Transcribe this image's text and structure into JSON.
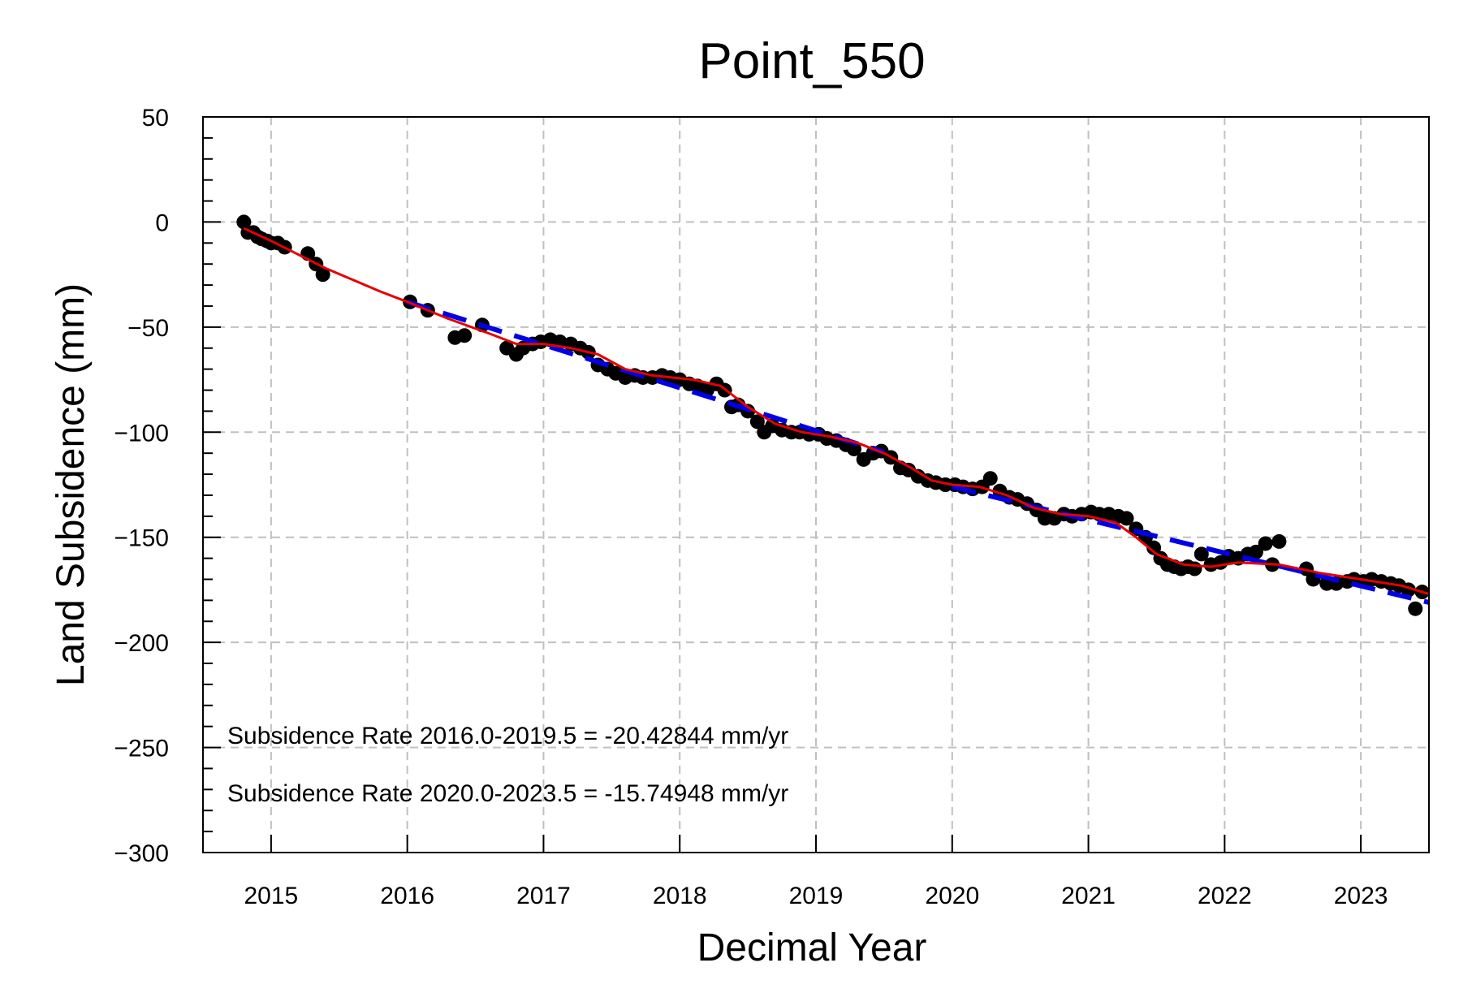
{
  "chart_data": {
    "type": "scatter",
    "title": "Point_550",
    "xlabel": "Decimal Year",
    "ylabel": "Land Subsidence (mm)",
    "xlim": [
      2014.5,
      2023.5
    ],
    "ylim": [
      -300,
      50
    ],
    "xticks": [
      2015,
      2016,
      2017,
      2018,
      2019,
      2020,
      2021,
      2022,
      2023
    ],
    "xtick_labels": [
      "2015",
      "2016",
      "2017",
      "2018",
      "2019",
      "2020",
      "2021",
      "2022",
      "2023"
    ],
    "yticks": [
      50,
      0,
      -50,
      -100,
      -150,
      -200,
      -250,
      -300
    ],
    "ytick_labels": [
      "50",
      "0",
      "−50",
      "−100",
      "−150",
      "−200",
      "−250",
      "−300"
    ],
    "grid": true,
    "annotations": [
      "Subsidence Rate 2016.0-2019.5 = -20.42844 mm/yr",
      "Subsidence Rate 2020.0-2023.5 = -15.74948 mm/yr"
    ],
    "colors": {
      "points": "#000000",
      "smooth": "#e60000",
      "trend": "#0000e6",
      "grid": "#c0c0c0"
    },
    "series": [
      {
        "kind": "points",
        "x": [
          2014.8,
          2014.83,
          2014.87,
          2014.9,
          2014.93,
          2014.97,
          2015.0,
          2015.05,
          2015.1,
          2015.27,
          2015.33,
          2015.38,
          2016.02,
          2016.15,
          2016.35,
          2016.42,
          2016.55,
          2016.73,
          2016.8,
          2016.85,
          2016.92,
          2016.98,
          2017.05,
          2017.12,
          2017.2,
          2017.27,
          2017.33,
          2017.4,
          2017.47,
          2017.53,
          2017.6,
          2017.67,
          2017.73,
          2017.8,
          2017.87,
          2017.93,
          2018.0,
          2018.07,
          2018.13,
          2018.2,
          2018.27,
          2018.33,
          2018.38,
          2018.43,
          2018.5,
          2018.57,
          2018.62,
          2018.68,
          2018.75,
          2018.82,
          2018.88,
          2018.95,
          2019.02,
          2019.08,
          2019.15,
          2019.22,
          2019.28,
          2019.35,
          2019.42,
          2019.48,
          2019.55,
          2019.62,
          2019.68,
          2019.75,
          2019.82,
          2019.88,
          2019.95,
          2020.02,
          2020.08,
          2020.15,
          2020.22,
          2020.28,
          2020.35,
          2020.42,
          2020.48,
          2020.55,
          2020.62,
          2020.68,
          2020.75,
          2020.82,
          2020.88,
          2020.95,
          2021.02,
          2021.08,
          2021.15,
          2021.22,
          2021.28,
          2021.35,
          2021.42,
          2021.48,
          2021.53,
          2021.58,
          2021.63,
          2021.68,
          2021.73,
          2021.78,
          2021.83,
          2021.9,
          2021.97,
          2022.03,
          2022.1,
          2022.17,
          2022.23,
          2022.3,
          2022.35,
          2022.4,
          2022.6,
          2022.65,
          2022.75,
          2022.82,
          2022.9,
          2022.95,
          2023.02,
          2023.08,
          2023.15,
          2023.22,
          2023.28,
          2023.35,
          2023.4,
          2023.45
        ],
        "y": [
          0,
          -5,
          -5,
          -7,
          -8,
          -9,
          -10,
          -10,
          -12,
          -15,
          -20,
          -25,
          -38,
          -42,
          -55,
          -54,
          -49,
          -60,
          -63,
          -60,
          -58,
          -57,
          -56,
          -57,
          -58,
          -60,
          -62,
          -68,
          -70,
          -72,
          -74,
          -73,
          -74,
          -74,
          -73,
          -74,
          -75,
          -77,
          -78,
          -80,
          -77,
          -80,
          -88,
          -87,
          -90,
          -95,
          -100,
          -97,
          -99,
          -100,
          -100,
          -101,
          -101,
          -103,
          -104,
          -106,
          -108,
          -113,
          -110,
          -109,
          -112,
          -117,
          -118,
          -121,
          -123,
          -124,
          -125,
          -125,
          -126,
          -127,
          -126,
          -122,
          -128,
          -131,
          -132,
          -134,
          -137,
          -141,
          -141,
          -139,
          -140,
          -139,
          -138,
          -139,
          -139,
          -140,
          -141,
          -146,
          -150,
          -155,
          -160,
          -163,
          -164,
          -165,
          -164,
          -165,
          -158,
          -163,
          -162,
          -159,
          -160,
          -158,
          -157,
          -153,
          -163,
          -152,
          -165,
          -170,
          -172,
          -172,
          -171,
          -170,
          -171,
          -170,
          -171,
          -172,
          -173,
          -175,
          -184,
          -176
        ]
      },
      {
        "kind": "smooth-line",
        "x": [
          2014.8,
          2015.0,
          2015.4,
          2015.8,
          2016.0,
          2016.3,
          2016.6,
          2016.8,
          2017.0,
          2017.2,
          2017.4,
          2017.6,
          2017.8,
          2018.1,
          2018.3,
          2018.5,
          2018.7,
          2018.9,
          2019.1,
          2019.3,
          2019.5,
          2019.7,
          2019.85,
          2020.0,
          2020.2,
          2020.4,
          2020.6,
          2020.8,
          2021.0,
          2021.2,
          2021.35,
          2021.5,
          2021.7,
          2021.9,
          2022.1,
          2022.4,
          2022.7,
          2023.0,
          2023.3,
          2023.5
        ],
        "y": [
          -3,
          -9,
          -22,
          -33,
          -38,
          -46,
          -53,
          -58,
          -58,
          -60,
          -63,
          -70,
          -73,
          -75,
          -78,
          -88,
          -96,
          -100,
          -102,
          -105,
          -110,
          -117,
          -123,
          -125,
          -126,
          -130,
          -136,
          -139,
          -140,
          -143,
          -150,
          -158,
          -163,
          -164,
          -162,
          -163,
          -167,
          -170,
          -173,
          -177
        ]
      },
      {
        "kind": "trend-line",
        "x": [
          2016.0,
          2019.5
        ],
        "y": [
          -38,
          -109.5
        ]
      },
      {
        "kind": "trend-line",
        "x": [
          2020.0,
          2023.5
        ],
        "y": [
          -126,
          -181
        ]
      }
    ]
  }
}
